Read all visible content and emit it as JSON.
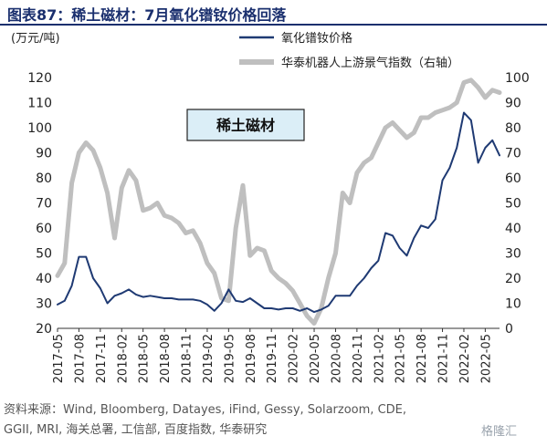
{
  "header": {
    "title": "图表87：稀土磁材：7月氧化镨钕价格回落"
  },
  "source": {
    "line1": "资料来源：Wind, Bloomberg, Datayes, iFind, Gessy, Solarzoom, CDE,",
    "line2": "GGII, MRI, 海关总署, 工信部, 百度指数, 华泰研究"
  },
  "watermark": "格隆汇",
  "chart_data": {
    "type": "line",
    "title": "",
    "box_label": "稀土磁材",
    "left_unit": "(万元/吨)",
    "x_tick_labels": [
      "2017-05",
      "2017-08",
      "2017-11",
      "2018-02",
      "2018-05",
      "2018-08",
      "2018-11",
      "2019-02",
      "2019-05",
      "2019-08",
      "2019-11",
      "2020-02",
      "2020-05",
      "2020-08",
      "2020-11",
      "2021-02",
      "2021-05",
      "2021-08",
      "2021-11",
      "2022-02",
      "2022-05"
    ],
    "y_left": {
      "min": 20,
      "max": 120,
      "ticks": [
        20,
        30,
        40,
        50,
        60,
        70,
        80,
        90,
        100,
        110,
        120
      ]
    },
    "y_right": {
      "min": 0,
      "max": 100,
      "ticks": [
        0,
        10,
        20,
        30,
        40,
        50,
        60,
        70,
        80,
        90,
        100
      ]
    },
    "legend": {
      "position": "top-right"
    },
    "series": [
      {
        "name": "氧化镨钕价格",
        "axis": "left",
        "color": "#1f3a73",
        "x": [
          "2017-05",
          "2017-06",
          "2017-07",
          "2017-08",
          "2017-09",
          "2017-10",
          "2017-11",
          "2017-12",
          "2018-01",
          "2018-02",
          "2018-03",
          "2018-04",
          "2018-05",
          "2018-06",
          "2018-07",
          "2018-08",
          "2018-09",
          "2018-10",
          "2018-11",
          "2018-12",
          "2019-01",
          "2019-02",
          "2019-03",
          "2019-04",
          "2019-05",
          "2019-06",
          "2019-07",
          "2019-08",
          "2019-09",
          "2019-10",
          "2019-11",
          "2019-12",
          "2020-01",
          "2020-02",
          "2020-03",
          "2020-04",
          "2020-05",
          "2020-06",
          "2020-07",
          "2020-08",
          "2020-09",
          "2020-10",
          "2020-11",
          "2020-12",
          "2021-01",
          "2021-02",
          "2021-03",
          "2021-04",
          "2021-05",
          "2021-06",
          "2021-07",
          "2021-08",
          "2021-09",
          "2021-10",
          "2021-11",
          "2021-12",
          "2022-01",
          "2022-02",
          "2022-03",
          "2022-04",
          "2022-05",
          "2022-06",
          "2022-07"
        ],
        "values": [
          29.5,
          31,
          37,
          48.5,
          48.5,
          40,
          36,
          30,
          33,
          34,
          35.5,
          33.5,
          32.5,
          33,
          32.5,
          32,
          32,
          31.5,
          31.5,
          31.5,
          31,
          29.5,
          27,
          30,
          35.5,
          31,
          30.5,
          32,
          30,
          28,
          28,
          27.5,
          28,
          28,
          27,
          28,
          26.5,
          27.5,
          29,
          33,
          33,
          33,
          37,
          40,
          44,
          47,
          58,
          57,
          52,
          49,
          56,
          61,
          60,
          63.5,
          79,
          84,
          92,
          106,
          103,
          86,
          92,
          95,
          89
        ]
      },
      {
        "name": "华泰机器人上游景气指数（右轴）",
        "axis": "right",
        "color": "#bfbfbf",
        "x": [
          "2017-05",
          "2017-06",
          "2017-07",
          "2017-08",
          "2017-09",
          "2017-10",
          "2017-11",
          "2017-12",
          "2018-01",
          "2018-02",
          "2018-03",
          "2018-04",
          "2018-05",
          "2018-06",
          "2018-07",
          "2018-08",
          "2018-09",
          "2018-10",
          "2018-11",
          "2018-12",
          "2019-01",
          "2019-02",
          "2019-03",
          "2019-04",
          "2019-05",
          "2019-06",
          "2019-07",
          "2019-08",
          "2019-09",
          "2019-10",
          "2019-11",
          "2019-12",
          "2020-01",
          "2020-02",
          "2020-03",
          "2020-04",
          "2020-05",
          "2020-06",
          "2020-07",
          "2020-08",
          "2020-09",
          "2020-10",
          "2020-11",
          "2020-12",
          "2021-01",
          "2021-02",
          "2021-03",
          "2021-04",
          "2021-05",
          "2021-06",
          "2021-07",
          "2021-08",
          "2021-09",
          "2021-10",
          "2021-11",
          "2021-12",
          "2022-01",
          "2022-02",
          "2022-03",
          "2022-04",
          "2022-05",
          "2022-06",
          "2022-07"
        ],
        "values": [
          21,
          26,
          58,
          70,
          74,
          71,
          64,
          54,
          36,
          56,
          63,
          59,
          47,
          48,
          50,
          45,
          44,
          42,
          38,
          39,
          34,
          26,
          22,
          12,
          11,
          40,
          57,
          29,
          32,
          31,
          23,
          20,
          18,
          15,
          10,
          5,
          2,
          8,
          20,
          30,
          54,
          50,
          62,
          66,
          68,
          74,
          80,
          82,
          79,
          76,
          78,
          84,
          84,
          86,
          87,
          88,
          90,
          98,
          99,
          96,
          92,
          95,
          94
        ]
      }
    ]
  }
}
